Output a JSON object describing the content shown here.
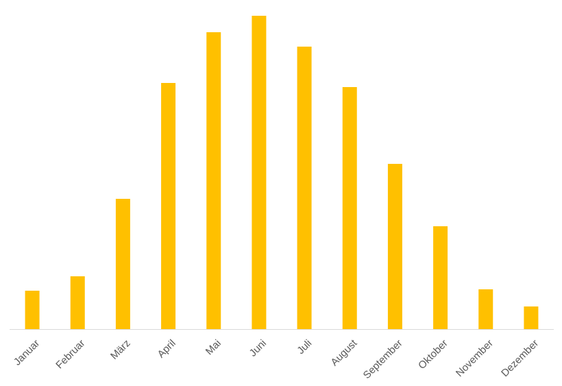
{
  "chart_data": {
    "type": "bar",
    "categories": [
      "Januar",
      "Februar",
      "März",
      "April",
      "Mai",
      "Juni",
      "Juli",
      "August",
      "September",
      "Oktober",
      "November",
      "Dezember"
    ],
    "values": [
      56,
      77,
      190,
      359,
      433,
      457,
      412,
      353,
      241,
      150,
      58,
      33
    ],
    "ylim": [
      0,
      457
    ],
    "grid": false,
    "legend": "none",
    "bar_color": "#FFC000",
    "axis_color": "#D9D9D9",
    "label_color": "#595959"
  }
}
